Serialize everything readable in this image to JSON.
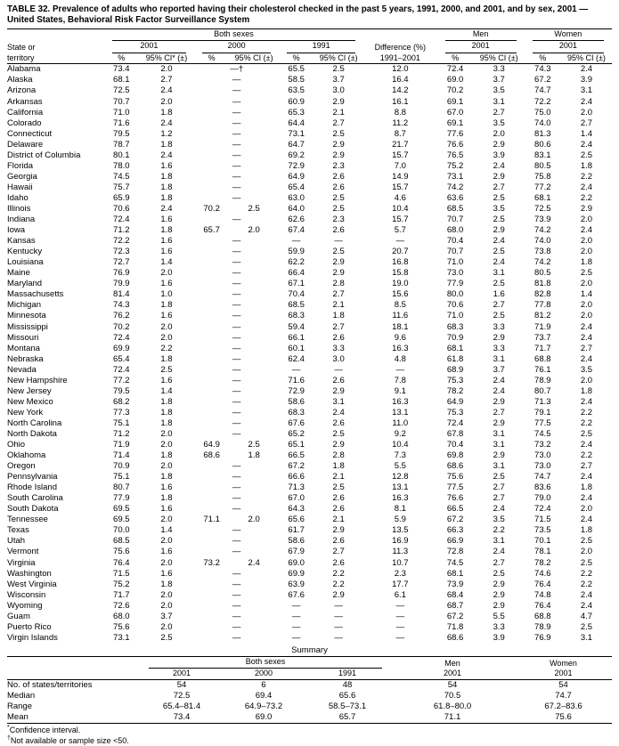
{
  "title": "TABLE 32. Prevalence of adults who reported having their cholesterol checked in the past 5 years, 1991, 2000, and 2001, and by sex, 2001 — United States, Behavioral Risk Factor Surveillance System",
  "table": {
    "groups": {
      "both": "Both sexes",
      "men": "Men",
      "women": "Women"
    },
    "state_col": {
      "line1": "State or",
      "line2": "territory"
    },
    "years": {
      "y2001": "2001",
      "y2000": "2000",
      "y1991": "1991"
    },
    "diff_col": {
      "line1": "Difference (%)",
      "line2": "1991–2001"
    },
    "measures": {
      "pct": "%",
      "ci_star": "95% CI* (±)",
      "ci": "95% CI (±)"
    },
    "rows": [
      [
        "Alabama",
        "73.4",
        "2.0",
        "—†",
        null,
        "65.5",
        "2.5",
        "12.0",
        "72.4",
        "3.3",
        "74.3",
        "2.4"
      ],
      [
        "Alaska",
        "68.1",
        "2.7",
        "—",
        null,
        "58.5",
        "3.7",
        "16.4",
        "69.0",
        "3.7",
        "67.2",
        "3.9"
      ],
      [
        "Arizona",
        "72.5",
        "2.4",
        "—",
        null,
        "63.5",
        "3.0",
        "14.2",
        "70.2",
        "3.5",
        "74.7",
        "3.1"
      ],
      [
        "Arkansas",
        "70.7",
        "2.0",
        "—",
        null,
        "60.9",
        "2.9",
        "16.1",
        "69.1",
        "3.1",
        "72.2",
        "2.4"
      ],
      [
        "California",
        "71.0",
        "1.8",
        "—",
        null,
        "65.3",
        "2.1",
        "8.8",
        "67.0",
        "2.7",
        "75.0",
        "2.0"
      ],
      [
        "Colorado",
        "71.6",
        "2.4",
        "—",
        null,
        "64.4",
        "2.7",
        "11.2",
        "69.1",
        "3.5",
        "74.0",
        "2.7"
      ],
      [
        "Connecticut",
        "79.5",
        "1.2",
        "—",
        null,
        "73.1",
        "2.5",
        "8.7",
        "77.6",
        "2.0",
        "81.3",
        "1.4"
      ],
      [
        "Delaware",
        "78.7",
        "1.8",
        "—",
        null,
        "64.7",
        "2.9",
        "21.7",
        "76.6",
        "2.9",
        "80.6",
        "2.4"
      ],
      [
        "District of Columbia",
        "80.1",
        "2.4",
        "—",
        null,
        "69.2",
        "2.9",
        "15.7",
        "76.5",
        "3.9",
        "83.1",
        "2.5"
      ],
      [
        "Florida",
        "78.0",
        "1.6",
        "—",
        null,
        "72.9",
        "2.3",
        "7.0",
        "75.2",
        "2.4",
        "80.5",
        "1.8"
      ],
      [
        "Georgia",
        "74.5",
        "1.8",
        "—",
        null,
        "64.9",
        "2.6",
        "14.9",
        "73.1",
        "2.9",
        "75.8",
        "2.2"
      ],
      [
        "Hawaii",
        "75.7",
        "1.8",
        "—",
        null,
        "65.4",
        "2.6",
        "15.7",
        "74.2",
        "2.7",
        "77.2",
        "2.4"
      ],
      [
        "Idaho",
        "65.9",
        "1.8",
        "—",
        null,
        "63.0",
        "2.5",
        "4.6",
        "63.6",
        "2.5",
        "68.1",
        "2.2"
      ],
      [
        "Illinois",
        "70.6",
        "2.4",
        "70.2",
        "2.5",
        "64.0",
        "2.5",
        "10.4",
        "68.5",
        "3.5",
        "72.5",
        "2.9"
      ],
      [
        "Indiana",
        "72.4",
        "1.6",
        "—",
        null,
        "62.6",
        "2.3",
        "15.7",
        "70.7",
        "2.5",
        "73.9",
        "2.0"
      ],
      [
        "Iowa",
        "71.2",
        "1.8",
        "65.7",
        "2.0",
        "67.4",
        "2.6",
        "5.7",
        "68.0",
        "2.9",
        "74.2",
        "2.4"
      ],
      [
        "Kansas",
        "72.2",
        "1.6",
        "—",
        null,
        "—",
        "—",
        "—",
        "70.4",
        "2.4",
        "74.0",
        "2.0"
      ],
      [
        "Kentucky",
        "72.3",
        "1.6",
        "—",
        null,
        "59.9",
        "2.5",
        "20.7",
        "70.7",
        "2.5",
        "73.8",
        "2.0"
      ],
      [
        "Louisiana",
        "72.7",
        "1.4",
        "—",
        null,
        "62.2",
        "2.9",
        "16.8",
        "71.0",
        "2.4",
        "74.2",
        "1.8"
      ],
      [
        "Maine",
        "76.9",
        "2.0",
        "—",
        null,
        "66.4",
        "2.9",
        "15.8",
        "73.0",
        "3.1",
        "80.5",
        "2.5"
      ],
      [
        "Maryland",
        "79.9",
        "1.6",
        "—",
        null,
        "67.1",
        "2.8",
        "19.0",
        "77.9",
        "2.5",
        "81.8",
        "2.0"
      ],
      [
        "Massachusetts",
        "81.4",
        "1.0",
        "—",
        null,
        "70.4",
        "2.7",
        "15.6",
        "80.0",
        "1.6",
        "82.8",
        "1.4"
      ],
      [
        "Michigan",
        "74.3",
        "1.8",
        "—",
        null,
        "68.5",
        "2.1",
        "8.5",
        "70.6",
        "2.7",
        "77.8",
        "2.0"
      ],
      [
        "Minnesota",
        "76.2",
        "1.6",
        "—",
        null,
        "68.3",
        "1.8",
        "11.6",
        "71.0",
        "2.5",
        "81.2",
        "2.0"
      ],
      [
        "Mississippi",
        "70.2",
        "2.0",
        "—",
        null,
        "59.4",
        "2.7",
        "18.1",
        "68.3",
        "3.3",
        "71.9",
        "2.4"
      ],
      [
        "Missouri",
        "72.4",
        "2.0",
        "—",
        null,
        "66.1",
        "2.6",
        "9.6",
        "70.9",
        "2.9",
        "73.7",
        "2.4"
      ],
      [
        "Montana",
        "69.9",
        "2.2",
        "—",
        null,
        "60.1",
        "3.3",
        "16.3",
        "68.1",
        "3.3",
        "71.7",
        "2.7"
      ],
      [
        "Nebraska",
        "65.4",
        "1.8",
        "—",
        null,
        "62.4",
        "3.0",
        "4.8",
        "61.8",
        "3.1",
        "68.8",
        "2.4"
      ],
      [
        "Nevada",
        "72.4",
        "2.5",
        "—",
        null,
        "—",
        "—",
        "—",
        "68.9",
        "3.7",
        "76.1",
        "3.5"
      ],
      [
        "New Hampshire",
        "77.2",
        "1.6",
        "—",
        null,
        "71.6",
        "2.6",
        "7.8",
        "75.3",
        "2.4",
        "78.9",
        "2.0"
      ],
      [
        "New Jersey",
        "79.5",
        "1.4",
        "—",
        null,
        "72.9",
        "2.9",
        "9.1",
        "78.2",
        "2.4",
        "80.7",
        "1.8"
      ],
      [
        "New Mexico",
        "68.2",
        "1.8",
        "—",
        null,
        "58.6",
        "3.1",
        "16.3",
        "64.9",
        "2.9",
        "71.3",
        "2.4"
      ],
      [
        "New York",
        "77.3",
        "1.8",
        "—",
        null,
        "68.3",
        "2.4",
        "13.1",
        "75.3",
        "2.7",
        "79.1",
        "2.2"
      ],
      [
        "North Carolina",
        "75.1",
        "1.8",
        "—",
        null,
        "67.6",
        "2.6",
        "11.0",
        "72.4",
        "2.9",
        "77.5",
        "2.2"
      ],
      [
        "North Dakota",
        "71.2",
        "2.0",
        "—",
        null,
        "65.2",
        "2.5",
        "9.2",
        "67.8",
        "3.1",
        "74.5",
        "2.5"
      ],
      [
        "Ohio",
        "71.9",
        "2.0",
        "64.9",
        "2.5",
        "65.1",
        "2.9",
        "10.4",
        "70.4",
        "3.1",
        "73.2",
        "2.4"
      ],
      [
        "Oklahoma",
        "71.4",
        "1.8",
        "68.6",
        "1.8",
        "66.5",
        "2.8",
        "7.3",
        "69.8",
        "2.9",
        "73.0",
        "2.2"
      ],
      [
        "Oregon",
        "70.9",
        "2.0",
        "—",
        null,
        "67.2",
        "1.8",
        "5.5",
        "68.6",
        "3.1",
        "73.0",
        "2.7"
      ],
      [
        "Pennsylvania",
        "75.1",
        "1.8",
        "—",
        null,
        "66.6",
        "2.1",
        "12.8",
        "75.6",
        "2.5",
        "74.7",
        "2.4"
      ],
      [
        "Rhode Island",
        "80.7",
        "1.6",
        "—",
        null,
        "71.3",
        "2.5",
        "13.1",
        "77.5",
        "2.7",
        "83.6",
        "1.8"
      ],
      [
        "South Carolina",
        "77.9",
        "1.8",
        "—",
        null,
        "67.0",
        "2.6",
        "16.3",
        "76.6",
        "2.7",
        "79.0",
        "2.4"
      ],
      [
        "South Dakota",
        "69.5",
        "1.6",
        "—",
        null,
        "64.3",
        "2.6",
        "8.1",
        "66.5",
        "2.4",
        "72.4",
        "2.0"
      ],
      [
        "Tennessee",
        "69.5",
        "2.0",
        "71.1",
        "2.0",
        "65.6",
        "2.1",
        "5.9",
        "67.2",
        "3.5",
        "71.5",
        "2.4"
      ],
      [
        "Texas",
        "70.0",
        "1.4",
        "—",
        null,
        "61.7",
        "2.9",
        "13.5",
        "66.3",
        "2.2",
        "73.5",
        "1.8"
      ],
      [
        "Utah",
        "68.5",
        "2.0",
        "—",
        null,
        "58.6",
        "2.6",
        "16.9",
        "66.9",
        "3.1",
        "70.1",
        "2.5"
      ],
      [
        "Vermont",
        "75.6",
        "1.6",
        "—",
        null,
        "67.9",
        "2.7",
        "11.3",
        "72.8",
        "2.4",
        "78.1",
        "2.0"
      ],
      [
        "Virginia",
        "76.4",
        "2.0",
        "73.2",
        "2.4",
        "69.0",
        "2.6",
        "10.7",
        "74.5",
        "2.7",
        "78.2",
        "2.5"
      ],
      [
        "Washington",
        "71.5",
        "1.6",
        "—",
        null,
        "69.9",
        "2.2",
        "2.3",
        "68.1",
        "2.5",
        "74.6",
        "2.2"
      ],
      [
        "West Virginia",
        "75.2",
        "1.8",
        "—",
        null,
        "63.9",
        "2.2",
        "17.7",
        "73.9",
        "2.9",
        "76.4",
        "2.2"
      ],
      [
        "Wisconsin",
        "71.7",
        "2.0",
        "—",
        null,
        "67.6",
        "2.9",
        "6.1",
        "68.4",
        "2.9",
        "74.8",
        "2.4"
      ],
      [
        "Wyoming",
        "72.6",
        "2.0",
        "—",
        null,
        "—",
        "—",
        "—",
        "68.7",
        "2.9",
        "76.4",
        "2.4"
      ],
      [
        "Guam",
        "68.0",
        "3.7",
        "—",
        null,
        "—",
        "—",
        "—",
        "67.2",
        "5.5",
        "68.8",
        "4.7"
      ],
      [
        "Puerto Rico",
        "75.6",
        "2.0",
        "—",
        null,
        "—",
        "—",
        "—",
        "71.8",
        "3.3",
        "78.9",
        "2.5"
      ],
      [
        "Virgin Islands",
        "73.1",
        "2.5",
        "—",
        null,
        "—",
        "—",
        "—",
        "68.6",
        "3.9",
        "76.9",
        "3.1"
      ]
    ]
  },
  "summary": {
    "title": "Summary",
    "groups": {
      "both": "Both sexes",
      "men": "Men",
      "women": "Women"
    },
    "years": [
      "2001",
      "2000",
      "1991",
      "2001",
      "2001"
    ],
    "rows": [
      [
        "No. of states/territories",
        "54",
        "6",
        "48",
        "54",
        "54"
      ],
      [
        "Median",
        "72.5",
        "69.4",
        "65.6",
        "70.5",
        "74.7"
      ],
      [
        "Range",
        "65.4–81.4",
        "64.9–73.2",
        "58.5–73.1",
        "61.8–80.0",
        "67.2–83.6"
      ],
      [
        "Mean",
        "73.4",
        "69.0",
        "65.7",
        "71.1",
        "75.6"
      ]
    ]
  },
  "footnotes": [
    {
      "marker": "*",
      "text": "Confidence interval."
    },
    {
      "marker": "†",
      "text": "Not available or sample size <50."
    }
  ]
}
